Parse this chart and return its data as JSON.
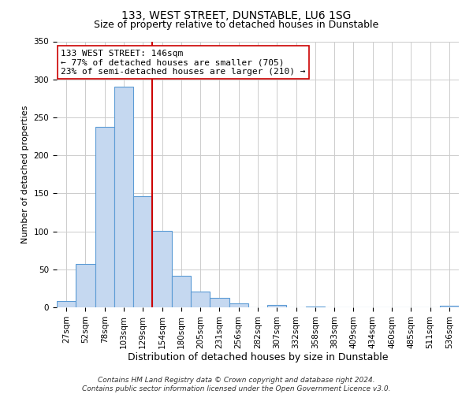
{
  "title": "133, WEST STREET, DUNSTABLE, LU6 1SG",
  "subtitle": "Size of property relative to detached houses in Dunstable",
  "xlabel": "Distribution of detached houses by size in Dunstable",
  "ylabel": "Number of detached properties",
  "bin_labels": [
    "27sqm",
    "52sqm",
    "78sqm",
    "103sqm",
    "129sqm",
    "154sqm",
    "180sqm",
    "205sqm",
    "231sqm",
    "256sqm",
    "282sqm",
    "307sqm",
    "332sqm",
    "358sqm",
    "383sqm",
    "409sqm",
    "434sqm",
    "460sqm",
    "485sqm",
    "511sqm",
    "536sqm"
  ],
  "bin_values": [
    8,
    57,
    238,
    290,
    146,
    101,
    42,
    21,
    12,
    5,
    0,
    3,
    0,
    1,
    0,
    0,
    0,
    0,
    0,
    0,
    2
  ],
  "bar_color": "#c5d8f0",
  "bar_edge_color": "#5b9bd5",
  "vline_x_index": 4.5,
  "annotation_title": "133 WEST STREET: 146sqm",
  "annotation_line1": "← 77% of detached houses are smaller (705)",
  "annotation_line2": "23% of semi-detached houses are larger (210) →",
  "vline_color": "#cc0000",
  "footnote1": "Contains HM Land Registry data © Crown copyright and database right 2024.",
  "footnote2": "Contains public sector information licensed under the Open Government Licence v3.0.",
  "ylim": [
    0,
    350
  ],
  "yticks": [
    0,
    50,
    100,
    150,
    200,
    250,
    300,
    350
  ],
  "background_color": "#ffffff",
  "grid_color": "#cccccc",
  "title_fontsize": 10,
  "subtitle_fontsize": 9,
  "xlabel_fontsize": 9,
  "ylabel_fontsize": 8,
  "tick_fontsize": 7.5,
  "annot_fontsize": 8,
  "footnote_fontsize": 6.5
}
